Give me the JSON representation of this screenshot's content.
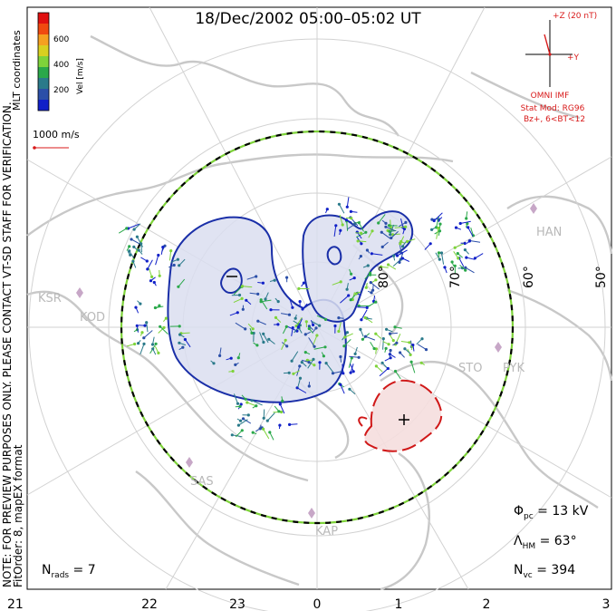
{
  "title": "18/Dec/2002 05:00–05:02 UT",
  "colorbar": {
    "ticks": [
      "600",
      "400",
      "200"
    ],
    "label": "Vel [m/s]",
    "colors": [
      "#e01010",
      "#f04a10",
      "#f5a020",
      "#d8d020",
      "#7ed33a",
      "#2aa84a",
      "#2a7a8a",
      "#2b4fa8",
      "#1020c8"
    ]
  },
  "coordinate_label": "MLT coordinates",
  "vector_scale": "1000 m/s",
  "side_note": "NOTE: FOR PREVIEW PURPOSES ONLY. PLEASE CONTACT VT-SD STAFF FOR VERIFICATION.",
  "fit_note": "FitOrder: 8, mapEX format",
  "imf": {
    "scale": "+Z (20 nT)",
    "y_label": "+Y",
    "source": "OMNI IMF",
    "model": "Stat Mod: RG96",
    "condition": "Bz+, 6<BT<12"
  },
  "lat_labels": [
    "80°",
    "70°",
    "60°",
    "50°"
  ],
  "stations": [
    "HAN",
    "KSR",
    "KOD",
    "STO",
    "PYK",
    "SAS",
    "KAP"
  ],
  "stats": {
    "phi_pc": "Φpc = 13 kV",
    "lambda_hm": "ΛHM = 63°",
    "n_vc": "Nvc = 394",
    "n_rads": "Nrads = 7"
  },
  "mlt_ticks": [
    "21",
    "22",
    "23",
    "0",
    "1",
    "2",
    "3"
  ],
  "colors": {
    "negative_cell": "#1a2fa8",
    "positive_cell": "#d01818",
    "hm_boundary_dash": "#000000",
    "hm_boundary_alt": "#7ed33a",
    "continents": "#c8c8c8"
  }
}
